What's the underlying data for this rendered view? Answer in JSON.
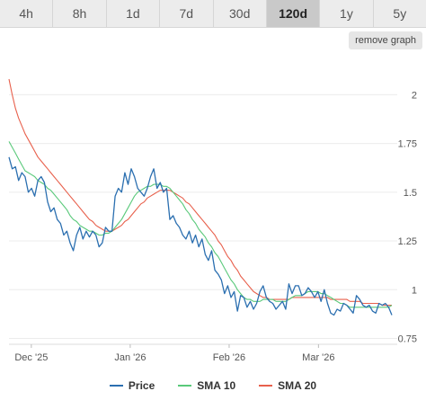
{
  "tabs": [
    {
      "label": "4h",
      "active": false
    },
    {
      "label": "8h",
      "active": false
    },
    {
      "label": "1d",
      "active": false
    },
    {
      "label": "7d",
      "active": false
    },
    {
      "label": "30d",
      "active": false
    },
    {
      "label": "120d",
      "active": true
    },
    {
      "label": "1y",
      "active": false
    },
    {
      "label": "5y",
      "active": false
    }
  ],
  "remove_graph_label": "remove graph",
  "chart_data": {
    "type": "line",
    "x_start": "2025-11-24",
    "x_ticks": [
      {
        "label": "Dec '25",
        "date": "2025-12-01"
      },
      {
        "label": "Jan '26",
        "date": "2026-01-01"
      },
      {
        "label": "Feb '26",
        "date": "2026-02-01"
      },
      {
        "label": "Mar '26",
        "date": "2026-03-01"
      }
    ],
    "y_ticks": [
      {
        "label": "0.75",
        "value": 0.75
      },
      {
        "label": "1",
        "value": 1.0
      },
      {
        "label": "1.25",
        "value": 1.25
      },
      {
        "label": "1.5",
        "value": 1.5
      },
      {
        "label": "1.75",
        "value": 1.75
      },
      {
        "label": "2",
        "value": 2.0
      }
    ],
    "ylim": [
      0.72,
      2.2
    ],
    "grid": "horizontal",
    "legend_position": "bottom",
    "series": [
      {
        "name": "Price",
        "color": "#2b6fb0",
        "values": [
          1.68,
          1.62,
          1.63,
          1.56,
          1.6,
          1.58,
          1.5,
          1.52,
          1.48,
          1.56,
          1.58,
          1.55,
          1.45,
          1.4,
          1.42,
          1.36,
          1.34,
          1.28,
          1.3,
          1.24,
          1.2,
          1.28,
          1.32,
          1.26,
          1.3,
          1.27,
          1.3,
          1.28,
          1.22,
          1.24,
          1.32,
          1.3,
          1.3,
          1.48,
          1.52,
          1.5,
          1.6,
          1.54,
          1.62,
          1.58,
          1.52,
          1.5,
          1.48,
          1.52,
          1.58,
          1.62,
          1.52,
          1.55,
          1.5,
          1.52,
          1.36,
          1.38,
          1.34,
          1.32,
          1.28,
          1.26,
          1.3,
          1.24,
          1.28,
          1.22,
          1.26,
          1.18,
          1.15,
          1.2,
          1.1,
          1.08,
          1.05,
          0.98,
          1.02,
          0.96,
          0.99,
          0.89,
          0.97,
          0.96,
          0.91,
          0.94,
          0.9,
          0.93,
          0.99,
          1.02,
          0.96,
          0.94,
          0.93,
          0.9,
          0.92,
          0.94,
          0.9,
          1.03,
          0.98,
          1.02,
          1.02,
          0.97,
          0.98,
          1.01,
          0.99,
          0.96,
          0.99,
          0.94,
          1.0,
          0.93,
          0.88,
          0.87,
          0.9,
          0.89,
          0.93,
          0.92,
          0.9,
          0.88,
          0.97,
          0.95,
          0.92,
          0.91,
          0.92,
          0.89,
          0.88,
          0.93,
          0.92,
          0.93,
          0.91,
          0.87
        ]
      },
      {
        "name": "SMA 10",
        "color": "#59c97a",
        "values": [
          1.76,
          1.73,
          1.7,
          1.67,
          1.64,
          1.61,
          1.6,
          1.59,
          1.58,
          1.56,
          1.55,
          1.54,
          1.52,
          1.51,
          1.49,
          1.47,
          1.45,
          1.43,
          1.41,
          1.38,
          1.36,
          1.35,
          1.33,
          1.32,
          1.31,
          1.3,
          1.3,
          1.29,
          1.28,
          1.28,
          1.29,
          1.29,
          1.3,
          1.32,
          1.34,
          1.36,
          1.39,
          1.42,
          1.45,
          1.48,
          1.5,
          1.51,
          1.52,
          1.53,
          1.53,
          1.54,
          1.54,
          1.54,
          1.53,
          1.53,
          1.52,
          1.5,
          1.48,
          1.46,
          1.44,
          1.41,
          1.39,
          1.36,
          1.34,
          1.31,
          1.29,
          1.27,
          1.24,
          1.22,
          1.19,
          1.17,
          1.14,
          1.11,
          1.08,
          1.05,
          1.03,
          1.0,
          0.98,
          0.96,
          0.95,
          0.95,
          0.94,
          0.94,
          0.94,
          0.95,
          0.95,
          0.95,
          0.95,
          0.94,
          0.94,
          0.94,
          0.94,
          0.95,
          0.96,
          0.97,
          0.97,
          0.97,
          0.98,
          0.99,
          0.99,
          0.99,
          0.99,
          0.98,
          0.98,
          0.97,
          0.96,
          0.95,
          0.94,
          0.93,
          0.93,
          0.92,
          0.91,
          0.91,
          0.91,
          0.91,
          0.91,
          0.91,
          0.91,
          0.91,
          0.91,
          0.91,
          0.91,
          0.91,
          0.91,
          0.92
        ]
      },
      {
        "name": "SMA 20",
        "color": "#e8604c",
        "values": [
          2.08,
          2.0,
          1.93,
          1.88,
          1.84,
          1.8,
          1.77,
          1.74,
          1.71,
          1.68,
          1.66,
          1.64,
          1.62,
          1.6,
          1.58,
          1.56,
          1.54,
          1.52,
          1.5,
          1.48,
          1.46,
          1.44,
          1.42,
          1.4,
          1.38,
          1.36,
          1.35,
          1.33,
          1.32,
          1.31,
          1.3,
          1.3,
          1.3,
          1.31,
          1.32,
          1.33,
          1.35,
          1.36,
          1.38,
          1.4,
          1.42,
          1.44,
          1.45,
          1.47,
          1.48,
          1.49,
          1.5,
          1.51,
          1.51,
          1.51,
          1.51,
          1.5,
          1.49,
          1.48,
          1.47,
          1.45,
          1.44,
          1.42,
          1.4,
          1.38,
          1.36,
          1.34,
          1.32,
          1.3,
          1.28,
          1.25,
          1.23,
          1.2,
          1.17,
          1.15,
          1.12,
          1.1,
          1.07,
          1.05,
          1.03,
          1.01,
          0.99,
          0.98,
          0.97,
          0.96,
          0.96,
          0.95,
          0.95,
          0.95,
          0.95,
          0.95,
          0.95,
          0.95,
          0.96,
          0.96,
          0.96,
          0.96,
          0.96,
          0.96,
          0.96,
          0.96,
          0.96,
          0.96,
          0.96,
          0.96,
          0.95,
          0.95,
          0.95,
          0.95,
          0.95,
          0.95,
          0.94,
          0.94,
          0.94,
          0.94,
          0.93,
          0.93,
          0.93,
          0.93,
          0.93,
          0.93,
          0.92,
          0.92,
          0.92,
          0.92
        ]
      }
    ]
  }
}
